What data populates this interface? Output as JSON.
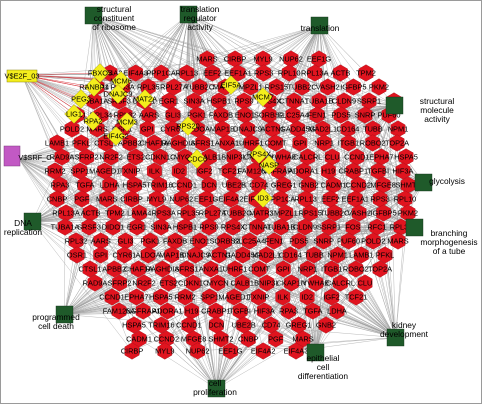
{
  "colors": {
    "gene": "#e0141f",
    "gene_stroke": "#a80d16",
    "tf_yellow": "#f4ee1c",
    "go_green": "#1f5a2a",
    "tf_magenta": "#c259c4",
    "edge": "#9c9c9c",
    "edge_red": "#d8323a"
  },
  "go_terms": [
    {
      "id": "go-structural-ribosome",
      "label_lines": [
        "structural",
        "constituent",
        "of ribosome"
      ]
    },
    {
      "id": "go-translation-regulator",
      "label_lines": [
        "translation",
        "regulator",
        "activity"
      ]
    },
    {
      "id": "go-translation",
      "label_lines": [
        "translation"
      ]
    },
    {
      "id": "go-structural-molecule",
      "label_lines": [
        "structural",
        "molecule",
        "activity"
      ]
    },
    {
      "id": "go-glycolysis",
      "label_lines": [
        "glycolysis"
      ]
    },
    {
      "id": "go-branching",
      "label_lines": [
        "branching",
        "morphogenesis",
        "of a tube"
      ]
    },
    {
      "id": "go-kidney",
      "label_lines": [
        "kidney",
        "development"
      ]
    },
    {
      "id": "go-epithelial",
      "label_lines": [
        "epithelial",
        "cell",
        "differentiation"
      ]
    },
    {
      "id": "go-proliferation",
      "label_lines": [
        "cell",
        "proliferation"
      ]
    },
    {
      "id": "go-pcd",
      "label_lines": [
        "programmed",
        "cell death"
      ]
    },
    {
      "id": "go-dna-replication",
      "label_lines": [
        "DNA",
        "replication"
      ]
    }
  ],
  "tf_nodes": [
    {
      "id": "V$E2F_03",
      "label": "V$E2F_03"
    },
    {
      "id": "V$SRF_C",
      "label": "V$SRF_C"
    }
  ],
  "yellow_genes": [
    "FBXO5",
    "MCM6",
    "RANBP1",
    "DNAJC9",
    "PEG3",
    "MAT2A",
    "LIG1",
    "RPA2",
    "MCM3",
    "EIF4G2",
    "EIF5A",
    "MCM7",
    "RPS20",
    "CDC6",
    "NASP",
    "RPS4X",
    "ID3"
  ],
  "red_genes": [
    "MARS",
    "CIRBP",
    "MYL9",
    "NUP62",
    "EEF1G",
    "EIF4A2",
    "EIF4A3",
    "PPP1CA",
    "RPL13",
    "EEF2",
    "EEF1A1",
    "RPS3",
    "RPL10",
    "RPL13A",
    "ACTB",
    "TPM2",
    "LAMA4",
    "RPS3A",
    "RPL35",
    "RPL27A",
    "TUBB2C",
    "MATR3",
    "MPZL1",
    "RPS15",
    "TUBB2C",
    "VASH2",
    "IGFBP5",
    "PKM2",
    "TUBA1A",
    "SRSF3",
    "DIDO1",
    "EGR1",
    "SIN3A",
    "HSPB1",
    "RPS9",
    "RPS4X",
    "CTNNA1",
    "TUBA1B",
    "CLDN9",
    "SSRP1",
    "FOS",
    "RFC1",
    "RPL34",
    "RPL32",
    "AARS",
    "GLI3",
    "PGK1",
    "FAXDB",
    "ENO1",
    "SORBS2",
    "SLC25A4",
    "FEN1",
    "PDS5",
    "SNRP",
    "PUF60",
    "POLD2",
    "MARS",
    "OSR1",
    "GPI",
    "CYR61",
    "ALDOA",
    "MAP1B",
    "DNAJC9",
    "ACTN1",
    "GADD45G",
    "MAD2L1",
    "CD164",
    "TUBB",
    "NPM1",
    "LAMB1",
    "PFKL",
    "CTSL1",
    "APBB2",
    "CHAF1A",
    "RAGHDIA",
    "SFRS1",
    "ANXA1",
    "UHRF1",
    "COMT",
    "GPI",
    "NRP1",
    "ITGB1",
    "ROBO2",
    "TOP2A",
    "RAD9A",
    "SFRP2",
    "NR2F2",
    "ETS2",
    "CDKN1C",
    "MYCN",
    "CALB1",
    "BNIP3L",
    "CKAP1N",
    "YWHAE",
    "CALCRL",
    "CLU",
    "CCND1",
    "EPHA7",
    "HSPA5",
    "RRM2",
    "SPP1",
    "MAGED1",
    "TXNIP",
    "ILK",
    "ID2",
    "IGF2",
    "TCF21",
    "FAM126A",
    "NGFRAP1",
    "ADORA1",
    "H19",
    "CRABP1",
    "TGFBI",
    "HIF3A",
    "RPA3",
    "TGFA",
    "LDHA",
    "HSPA5",
    "TRIM16",
    "CCND1",
    "DCN",
    "UBE2B",
    "CD74",
    "GREG1",
    "GNB2",
    "CADM1",
    "CCND2",
    "MFGE8",
    "SHMT2",
    "CNBP",
    "PGF"
  ],
  "legend_top_right": "translation"
}
